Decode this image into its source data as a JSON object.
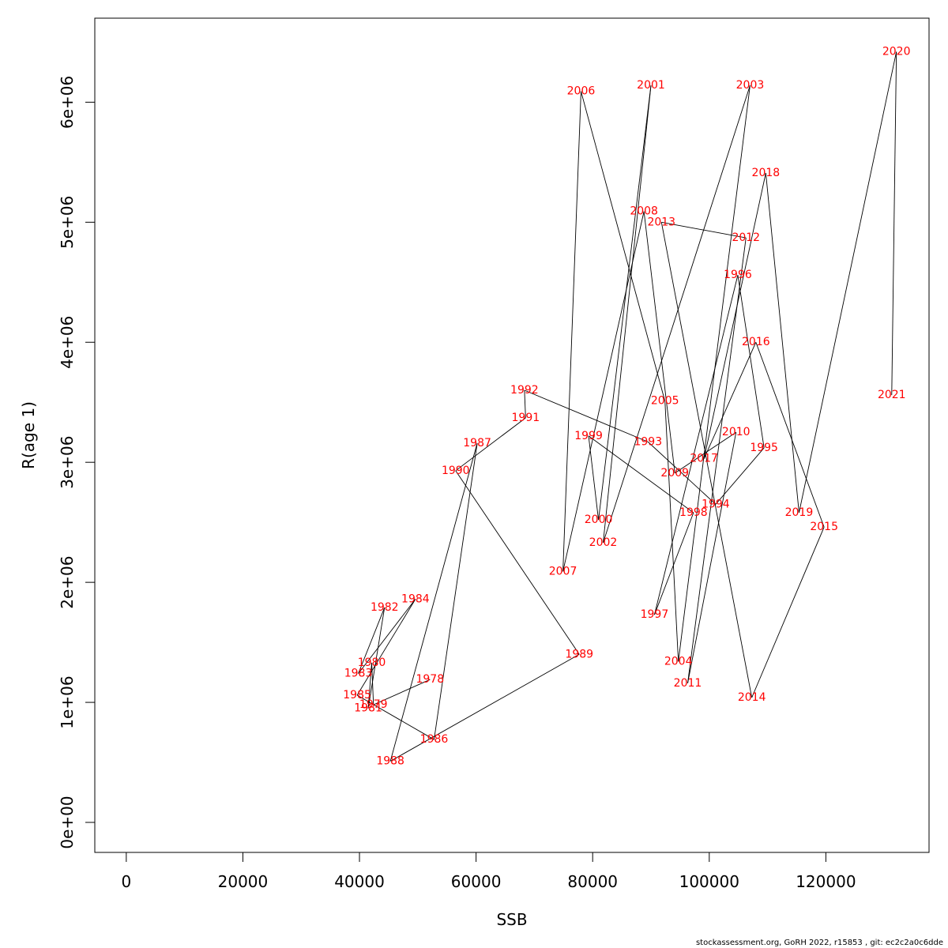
{
  "chart_data": {
    "type": "line",
    "xlabel": "SSB",
    "ylabel": "R(age 1)",
    "xlim": [
      -5400,
      137700
    ],
    "ylim": [
      -250000,
      6700000
    ],
    "x_ticks": [
      0,
      20000,
      40000,
      60000,
      80000,
      100000,
      120000
    ],
    "x_tick_labels": [
      "0",
      "20000",
      "40000",
      "60000",
      "80000",
      "100000",
      "120000"
    ],
    "y_ticks": [
      0,
      1000000,
      2000000,
      3000000,
      4000000,
      5000000,
      6000000
    ],
    "y_tick_labels": [
      "0e+00",
      "1e+06",
      "2e+06",
      "3e+06",
      "4e+06",
      "5e+06",
      "6e+06"
    ],
    "grid": false,
    "point_label_color": "#ff0000",
    "line_color": "#000000",
    "points": [
      {
        "year": "1978",
        "ssb": 52100,
        "r": 1190000
      },
      {
        "year": "1979",
        "ssb": 42400,
        "r": 980000
      },
      {
        "year": "1980",
        "ssb": 42100,
        "r": 1330000
      },
      {
        "year": "1981",
        "ssb": 41500,
        "r": 950000
      },
      {
        "year": "1982",
        "ssb": 44300,
        "r": 1790000
      },
      {
        "year": "1983",
        "ssb": 39800,
        "r": 1240000
      },
      {
        "year": "1984",
        "ssb": 49600,
        "r": 1860000
      },
      {
        "year": "1985",
        "ssb": 39600,
        "r": 1060000
      },
      {
        "year": "1986",
        "ssb": 52800,
        "r": 690000
      },
      {
        "year": "1987",
        "ssb": 60200,
        "r": 3160000
      },
      {
        "year": "1988",
        "ssb": 45300,
        "r": 510000
      },
      {
        "year": "1989",
        "ssb": 77700,
        "r": 1400000
      },
      {
        "year": "1990",
        "ssb": 56500,
        "r": 2930000
      },
      {
        "year": "1991",
        "ssb": 68500,
        "r": 3370000
      },
      {
        "year": "1992",
        "ssb": 68300,
        "r": 3600000
      },
      {
        "year": "1993",
        "ssb": 89500,
        "r": 3170000
      },
      {
        "year": "1994",
        "ssb": 101100,
        "r": 2650000
      },
      {
        "year": "1995",
        "ssb": 109400,
        "r": 3120000
      },
      {
        "year": "1996",
        "ssb": 104900,
        "r": 4560000
      },
      {
        "year": "1997",
        "ssb": 90600,
        "r": 1730000
      },
      {
        "year": "1998",
        "ssb": 97300,
        "r": 2580000
      },
      {
        "year": "1999",
        "ssb": 79300,
        "r": 3220000
      },
      {
        "year": "2000",
        "ssb": 81000,
        "r": 2520000
      },
      {
        "year": "2001",
        "ssb": 90000,
        "r": 6140000
      },
      {
        "year": "2002",
        "ssb": 81800,
        "r": 2330000
      },
      {
        "year": "2003",
        "ssb": 107000,
        "r": 6140000
      },
      {
        "year": "2004",
        "ssb": 94700,
        "r": 1340000
      },
      {
        "year": "2005",
        "ssb": 92400,
        "r": 3510000
      },
      {
        "year": "2006",
        "ssb": 78000,
        "r": 6090000
      },
      {
        "year": "2007",
        "ssb": 74900,
        "r": 2090000
      },
      {
        "year": "2008",
        "ssb": 88800,
        "r": 5090000
      },
      {
        "year": "2009",
        "ssb": 94100,
        "r": 2910000
      },
      {
        "year": "2010",
        "ssb": 104600,
        "r": 3250000
      },
      {
        "year": "2011",
        "ssb": 96300,
        "r": 1160000
      },
      {
        "year": "2012",
        "ssb": 106300,
        "r": 4870000
      },
      {
        "year": "2013",
        "ssb": 91800,
        "r": 5000000
      },
      {
        "year": "2014",
        "ssb": 107300,
        "r": 1040000
      },
      {
        "year": "2015",
        "ssb": 119700,
        "r": 2460000
      },
      {
        "year": "2016",
        "ssb": 108000,
        "r": 4000000
      },
      {
        "year": "2017",
        "ssb": 99100,
        "r": 3030000
      },
      {
        "year": "2018",
        "ssb": 109700,
        "r": 5410000
      },
      {
        "year": "2019",
        "ssb": 115400,
        "r": 2580000
      },
      {
        "year": "2020",
        "ssb": 132100,
        "r": 6420000
      },
      {
        "year": "2021",
        "ssb": 131300,
        "r": 3560000
      }
    ]
  },
  "footer": "stockassessment.org, GoRH  2022, r15853 , git: ec2c2a0c6dde"
}
